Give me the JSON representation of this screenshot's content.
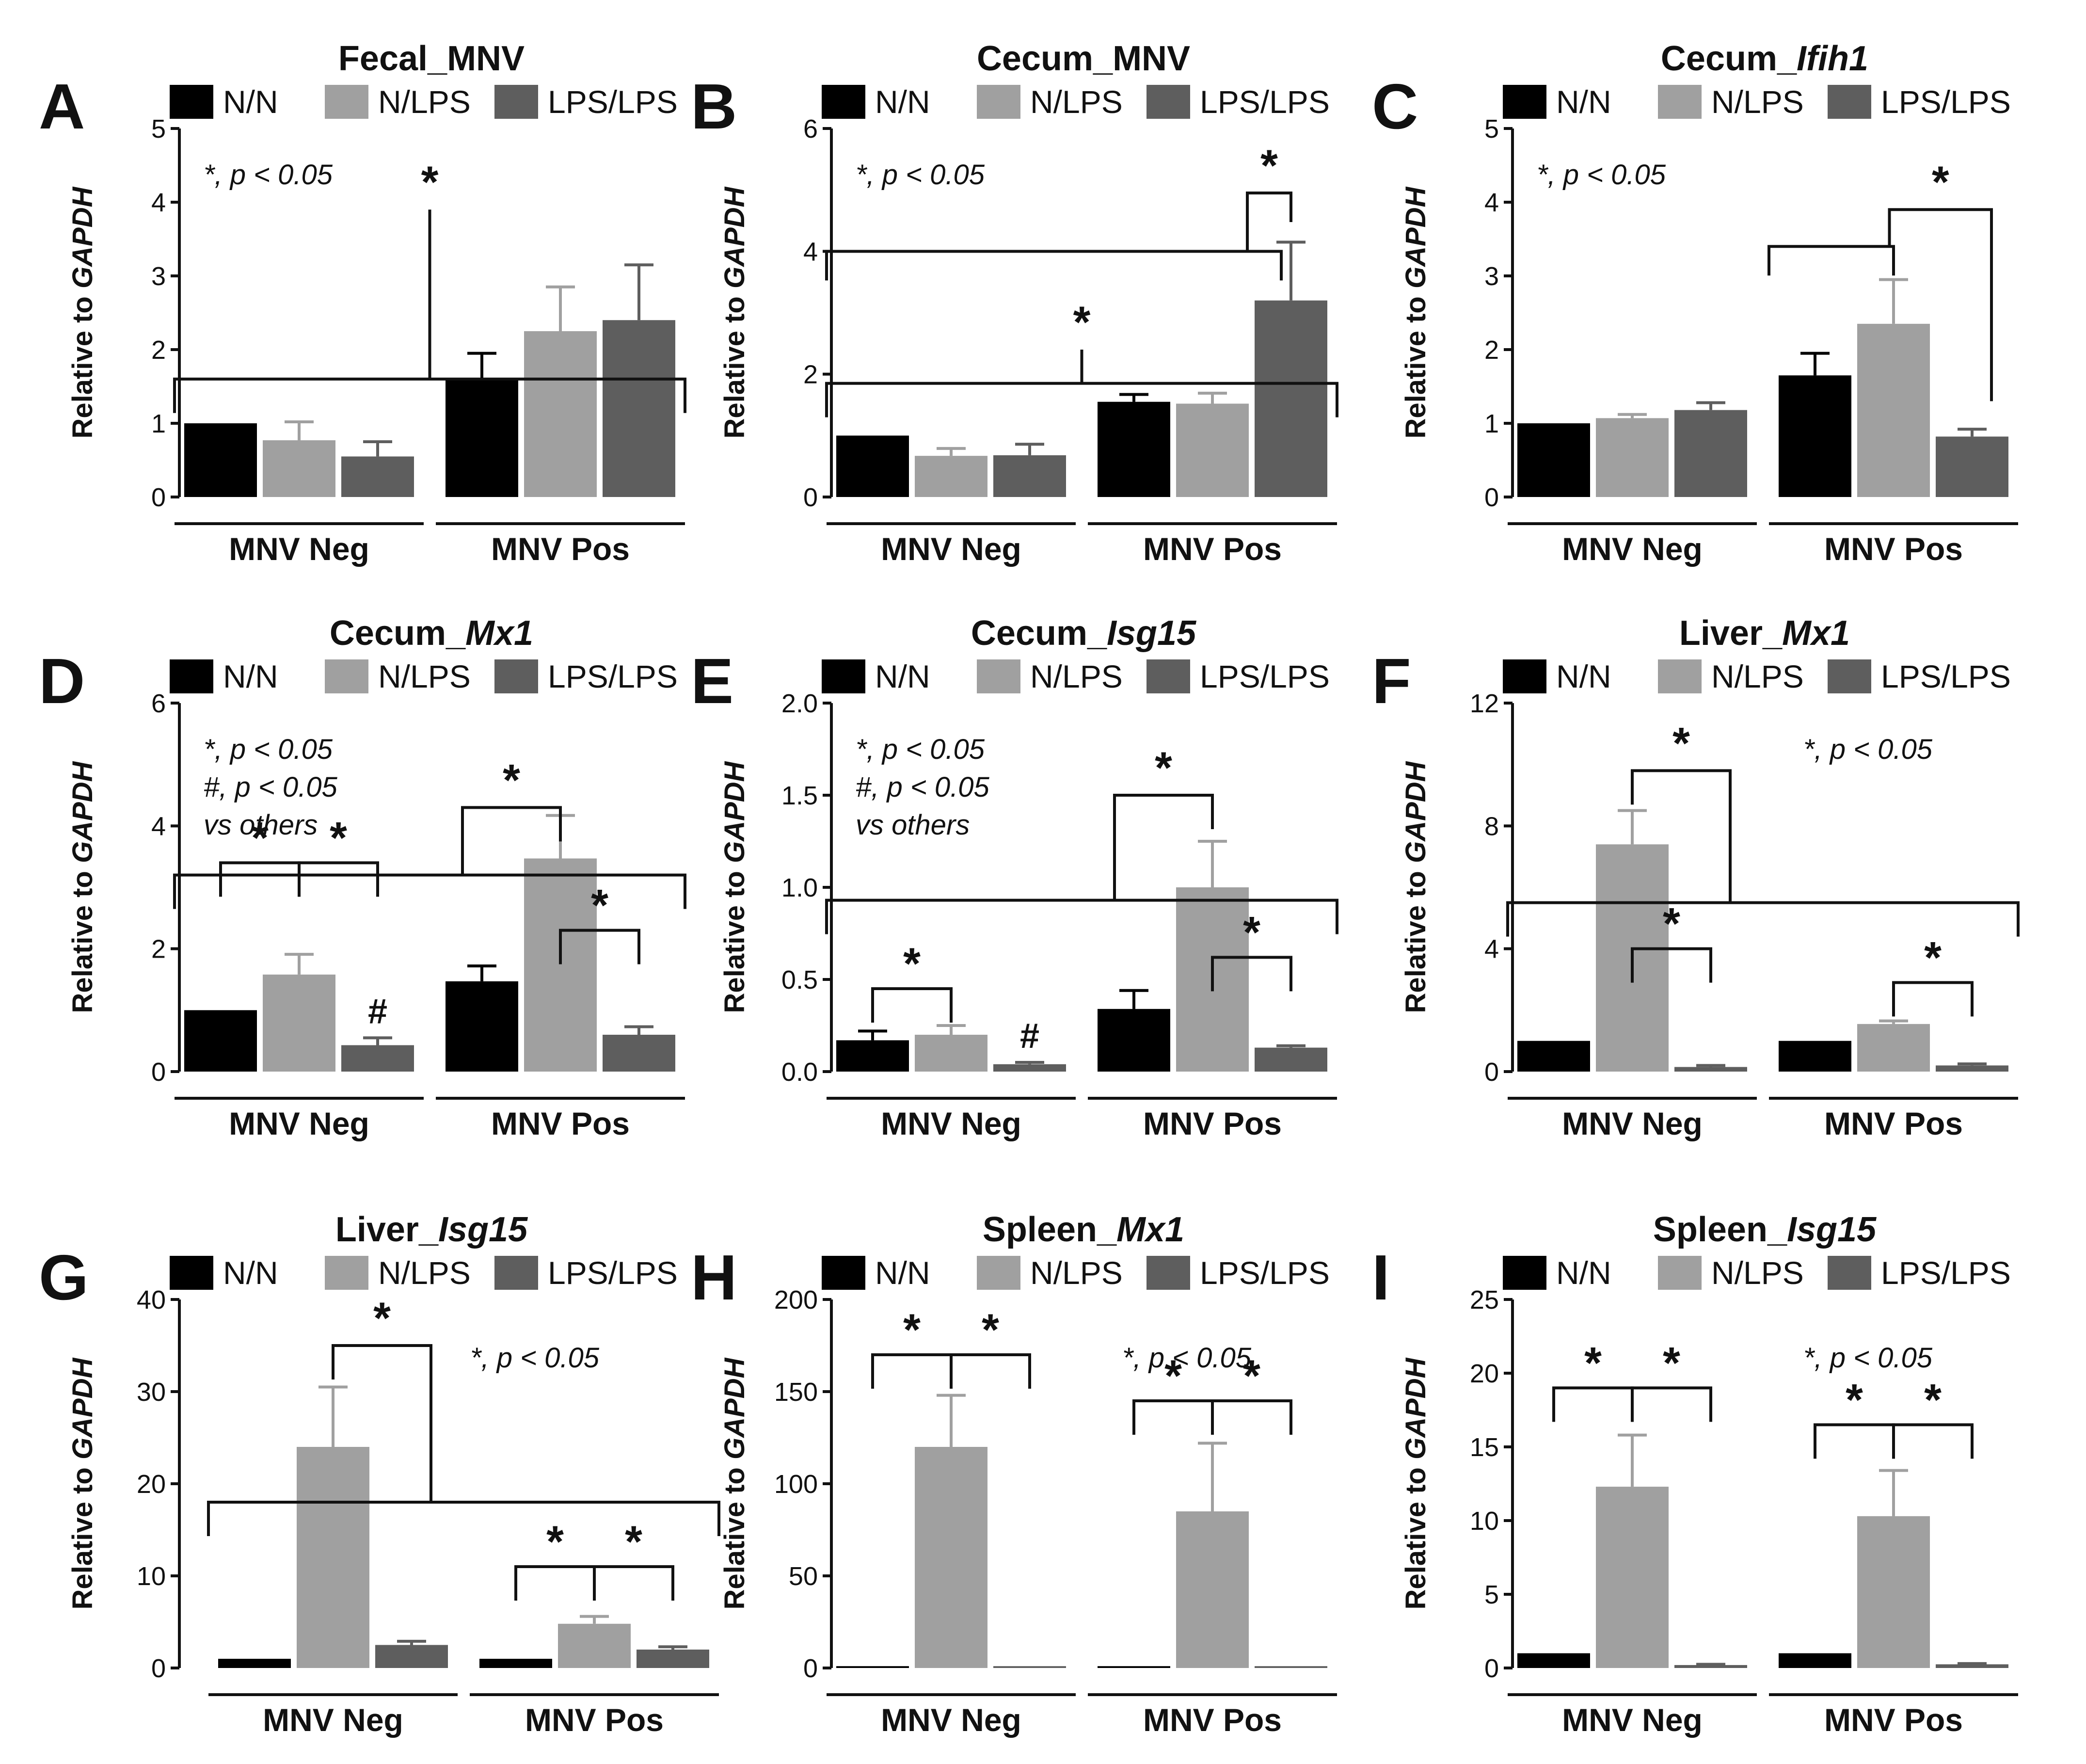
{
  "legend_labels": [
    "N/N",
    "N/LPS",
    "LPS/LPS"
  ],
  "colors": {
    "N/N": "#000000",
    "N/LPS": "#a0a0a0",
    "LPS/LPS": "#5e5e5e",
    "axis": "#111111"
  },
  "chart_data": [
    {
      "letter": "A",
      "title": "Fecal_MNV",
      "type": "bar",
      "categories": [
        "MNV Neg",
        "MNV Pos"
      ],
      "ylabel": "Relative to GAPDH",
      "ylim": [
        0,
        5
      ],
      "yticks": [
        0,
        1,
        2,
        3,
        4,
        5
      ],
      "series": [
        {
          "name": "N/N",
          "values": [
            1.0,
            1.6
          ],
          "errors": [
            0,
            0.35
          ]
        },
        {
          "name": "N/LPS",
          "values": [
            0.77,
            2.25
          ],
          "errors": [
            0.25,
            0.6
          ]
        },
        {
          "name": "LPS/LPS",
          "values": [
            0.55,
            2.4
          ],
          "errors": [
            0.2,
            0.75
          ]
        }
      ],
      "annotations": [
        "*, p < 0.05",
        "*"
      ]
    },
    {
      "letter": "B",
      "title": "Cecum_MNV",
      "type": "bar",
      "categories": [
        "MNV Neg",
        "MNV Pos"
      ],
      "ylabel": "Relative to GAPDH",
      "ylim": [
        0,
        6
      ],
      "yticks": [
        0,
        2,
        4,
        6
      ],
      "series": [
        {
          "name": "N/N",
          "values": [
            1.0,
            1.55
          ],
          "errors": [
            0,
            0.12
          ]
        },
        {
          "name": "N/LPS",
          "values": [
            0.67,
            1.52
          ],
          "errors": [
            0.12,
            0.17
          ]
        },
        {
          "name": "LPS/LPS",
          "values": [
            0.68,
            3.2
          ],
          "errors": [
            0.18,
            0.95
          ]
        }
      ],
      "annotations": [
        "*, p < 0.05",
        "*",
        "*"
      ]
    },
    {
      "letter": "C",
      "title_prefix": "Cecum_",
      "title_italic": "Ifih1",
      "type": "bar",
      "categories": [
        "MNV Neg",
        "MNV Pos"
      ],
      "ylabel": "Relative to GAPDH",
      "ylim": [
        0,
        5
      ],
      "yticks": [
        0,
        1,
        2,
        3,
        4,
        5
      ],
      "series": [
        {
          "name": "N/N",
          "values": [
            1.0,
            1.65
          ],
          "errors": [
            0,
            0.3
          ]
        },
        {
          "name": "N/LPS",
          "values": [
            1.07,
            2.35
          ],
          "errors": [
            0.05,
            0.6
          ]
        },
        {
          "name": "LPS/LPS",
          "values": [
            1.18,
            0.82
          ],
          "errors": [
            0.1,
            0.1
          ]
        }
      ],
      "annotations": [
        "*, p < 0.05",
        "*"
      ]
    },
    {
      "letter": "D",
      "title_prefix": "Cecum_",
      "title_italic": "Mx1",
      "type": "bar",
      "categories": [
        "MNV Neg",
        "MNV Pos"
      ],
      "ylabel": "Relative to GAPDH",
      "ylim": [
        0,
        6
      ],
      "yticks": [
        0,
        2,
        4,
        6
      ],
      "series": [
        {
          "name": "N/N",
          "values": [
            1.0,
            1.47
          ],
          "errors": [
            0,
            0.25
          ]
        },
        {
          "name": "N/LPS",
          "values": [
            1.58,
            3.47
          ],
          "errors": [
            0.33,
            0.7
          ]
        },
        {
          "name": "LPS/LPS",
          "values": [
            0.43,
            0.6
          ],
          "errors": [
            0.12,
            0.13
          ]
        }
      ],
      "annotations": [
        "*, p < 0.05",
        "#, p < 0.05",
        "vs others",
        "*",
        "*",
        "*",
        "*",
        "#"
      ]
    },
    {
      "letter": "E",
      "title_prefix": "Cecum_",
      "title_italic": "Isg15",
      "type": "bar",
      "categories": [
        "MNV Neg",
        "MNV Pos"
      ],
      "ylabel": "Relative to GAPDH",
      "ylim": [
        0,
        2
      ],
      "yticks": [
        "0.0",
        "0.5",
        "1.0",
        "1.5",
        "2.0"
      ],
      "series": [
        {
          "name": "N/N",
          "values": [
            0.17,
            0.34
          ],
          "errors": [
            0.05,
            0.1
          ]
        },
        {
          "name": "N/LPS",
          "values": [
            0.2,
            1.0
          ],
          "errors": [
            0.05,
            0.25
          ]
        },
        {
          "name": "LPS/LPS",
          "values": [
            0.04,
            0.13
          ],
          "errors": [
            0.01,
            0.01
          ]
        }
      ],
      "annotations": [
        "*, p < 0.05",
        "#, p < 0.05",
        "vs others",
        "*",
        "*",
        "*",
        "#"
      ]
    },
    {
      "letter": "F",
      "title_prefix": "Liver_",
      "title_italic": "Mx1",
      "type": "bar",
      "categories": [
        "MNV Neg",
        "MNV Pos"
      ],
      "ylabel": "Relative to GAPDH",
      "ylim": [
        0,
        12
      ],
      "yticks": [
        0,
        4,
        8,
        12
      ],
      "series": [
        {
          "name": "N/N",
          "values": [
            1.0,
            1.0
          ],
          "errors": [
            0,
            0
          ]
        },
        {
          "name": "N/LPS",
          "values": [
            7.4,
            1.55
          ],
          "errors": [
            1.1,
            0.1
          ]
        },
        {
          "name": "LPS/LPS",
          "values": [
            0.15,
            0.2
          ],
          "errors": [
            0.05,
            0.05
          ]
        }
      ],
      "annotations": [
        "*, p < 0.05",
        "*",
        "*",
        "*"
      ]
    },
    {
      "letter": "G",
      "title_prefix": "Liver_",
      "title_italic": "Isg15",
      "type": "bar",
      "categories": [
        "MNV Neg",
        "MNV Pos"
      ],
      "ylabel": "Relative to GAPDH",
      "ylim": [
        0,
        40
      ],
      "yticks": [
        0,
        10,
        20,
        30,
        40
      ],
      "series": [
        {
          "name": "N/N",
          "values": [
            1.0,
            1.0
          ],
          "errors": [
            0,
            0
          ]
        },
        {
          "name": "N/LPS",
          "values": [
            24.0,
            4.8
          ],
          "errors": [
            6.5,
            0.8
          ]
        },
        {
          "name": "LPS/LPS",
          "values": [
            2.5,
            2.0
          ],
          "errors": [
            0.4,
            0.3
          ]
        }
      ],
      "annotations": [
        "*, p < 0.05",
        "*",
        "*",
        "*"
      ]
    },
    {
      "letter": "H",
      "title_prefix": "Spleen_",
      "title_italic": "Mx1",
      "type": "bar",
      "categories": [
        "MNV Neg",
        "MNV Pos"
      ],
      "ylabel": "Relative to GAPDH",
      "ylim": [
        0,
        200
      ],
      "yticks": [
        0,
        50,
        100,
        150,
        200
      ],
      "series": [
        {
          "name": "N/N",
          "values": [
            1.0,
            1.0
          ],
          "errors": [
            0,
            0
          ]
        },
        {
          "name": "N/LPS",
          "values": [
            120,
            85
          ],
          "errors": [
            28,
            37
          ]
        },
        {
          "name": "LPS/LPS",
          "values": [
            1.0,
            1.0
          ],
          "errors": [
            0,
            0
          ]
        }
      ],
      "annotations": [
        "*, p < 0.05",
        "*",
        "*",
        "*",
        "*"
      ]
    },
    {
      "letter": "I",
      "title_prefix": "Spleen_",
      "title_italic": "Isg15",
      "type": "bar",
      "categories": [
        "MNV Neg",
        "MNV Pos"
      ],
      "ylabel": "Relative to GAPDH",
      "ylim": [
        0,
        25
      ],
      "yticks": [
        0,
        5,
        10,
        15,
        20,
        25
      ],
      "series": [
        {
          "name": "N/N",
          "values": [
            1.0,
            1.0
          ],
          "errors": [
            0,
            0
          ]
        },
        {
          "name": "N/LPS",
          "values": [
            12.3,
            10.3
          ],
          "errors": [
            3.5,
            3.1
          ]
        },
        {
          "name": "LPS/LPS",
          "values": [
            0.2,
            0.25
          ],
          "errors": [
            0.05,
            0.05
          ]
        }
      ],
      "annotations": [
        "*, p < 0.05",
        "*",
        "*",
        "*",
        "*"
      ]
    }
  ]
}
